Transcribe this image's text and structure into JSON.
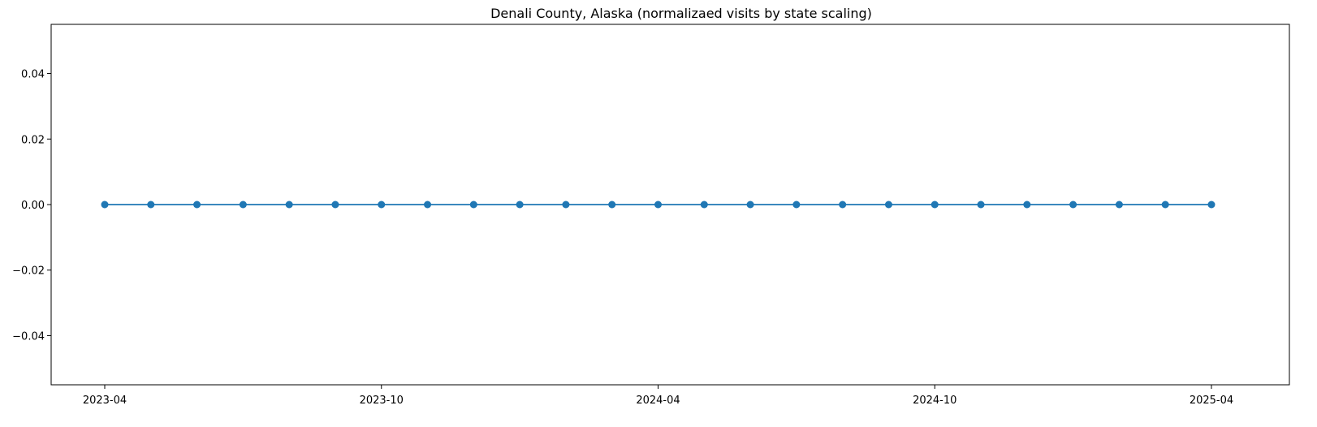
{
  "chart_data": {
    "type": "line",
    "title": "Denali County, Alaska (normalizaed visits by state scaling)",
    "xlabel": "",
    "ylabel": "",
    "x_tick_labels": [
      "2023-04",
      "2023-10",
      "2024-04",
      "2024-10",
      "2025-04"
    ],
    "y_tick_labels": [
      "−0.04",
      "−0.02",
      "0.00",
      "0.02",
      "0.04"
    ],
    "y_ticks": [
      -0.04,
      -0.02,
      0.0,
      0.02,
      0.04
    ],
    "ylim": [
      -0.055,
      0.055
    ],
    "grid": false,
    "legend": "none",
    "series": [
      {
        "color": "#1f77b4",
        "marker": "circle",
        "x": [
          "2023-04",
          "2023-05",
          "2023-06",
          "2023-07",
          "2023-08",
          "2023-09",
          "2023-10",
          "2023-11",
          "2023-12",
          "2024-01",
          "2024-02",
          "2024-03",
          "2024-04",
          "2024-05",
          "2024-06",
          "2024-07",
          "2024-08",
          "2024-09",
          "2024-10",
          "2024-11",
          "2024-12",
          "2025-01",
          "2025-02",
          "2025-03",
          "2025-04"
        ],
        "values": [
          0,
          0,
          0,
          0,
          0,
          0,
          0,
          0,
          0,
          0,
          0,
          0,
          0,
          0,
          0,
          0,
          0,
          0,
          0,
          0,
          0,
          0,
          0,
          0,
          0
        ]
      }
    ]
  }
}
